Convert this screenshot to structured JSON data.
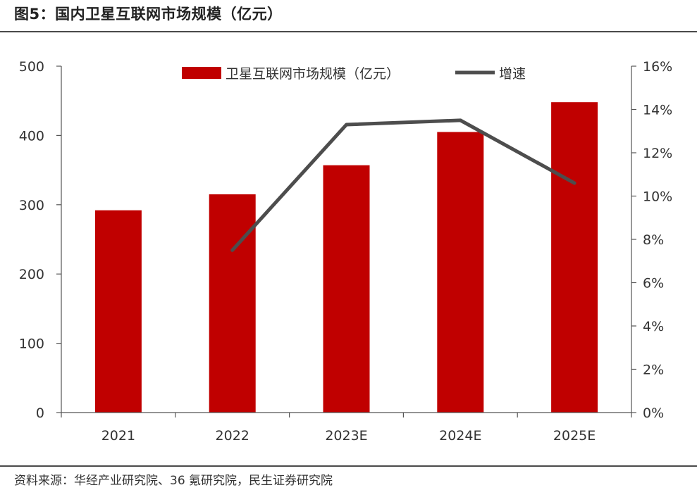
{
  "figure_title": "图5：国内卫星互联网市场规模（亿元）",
  "source_note": "资料来源：华经产业研究院、36 氪研究院，民生证券研究院",
  "colors": {
    "bar": "#c00000",
    "line": "#4d4d4d",
    "axis": "#555555",
    "text": "#333333"
  },
  "chart_data": {
    "type": "bar",
    "categories": [
      "2021",
      "2022",
      "2023E",
      "2024E",
      "2025E"
    ],
    "series": [
      {
        "name": "卫星互联网市场规模（亿元）",
        "type": "bar",
        "axis": "left",
        "values": [
          292,
          315,
          357,
          405,
          448
        ]
      },
      {
        "name": "增速",
        "type": "line",
        "axis": "right",
        "values": [
          null,
          7.5,
          13.3,
          13.5,
          10.6
        ]
      }
    ],
    "y_left": {
      "ylim": [
        0,
        500
      ],
      "ticks": [
        0,
        100,
        200,
        300,
        400,
        500
      ]
    },
    "y_right": {
      "ylim": [
        0,
        16
      ],
      "ticks": [
        0,
        2,
        4,
        6,
        8,
        10,
        12,
        14,
        16
      ],
      "tick_suffix": "%"
    },
    "legend": {
      "placement": "top-center"
    },
    "grid": false
  }
}
